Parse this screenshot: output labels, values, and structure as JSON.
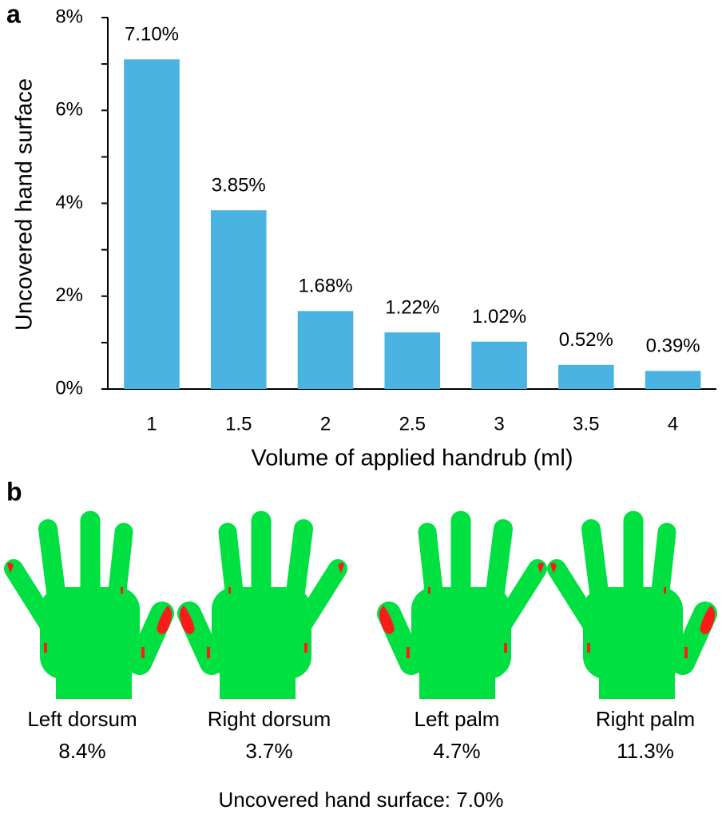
{
  "chart_data": {
    "type": "bar",
    "panel": "a",
    "categories": [
      "1",
      "1.5",
      "2",
      "2.5",
      "3",
      "3.5",
      "4"
    ],
    "values": [
      7.1,
      3.85,
      1.68,
      1.22,
      1.02,
      0.52,
      0.39
    ],
    "value_labels": [
      "7.10%",
      "3.85%",
      "1.68%",
      "1.22%",
      "1.02%",
      "0.52%",
      "0.39%"
    ],
    "color": "#4ab3e2",
    "ylim": [
      0,
      8
    ],
    "yticks": [
      {
        "value": 0,
        "label": "0%"
      },
      {
        "value": 2,
        "label": "2%"
      },
      {
        "value": 4,
        "label": "4%"
      },
      {
        "value": 6,
        "label": "6%"
      },
      {
        "value": 8,
        "label": "8%"
      }
    ],
    "minor_yticks": [
      1,
      3,
      5,
      7
    ],
    "ylabel": "Uncovered hand surface",
    "xlabel": "Volume of applied handrub (ml)",
    "grid": false
  },
  "panel_b": {
    "label": "b",
    "hands": [
      {
        "name": "Left dorsum",
        "value": "8.4%"
      },
      {
        "name": "Right dorsum",
        "value": "3.7%"
      },
      {
        "name": "Left palm",
        "value": "4.7%"
      },
      {
        "name": "Right palm",
        "value": "11.3%"
      }
    ],
    "summary": "Uncovered hand surface: 7.0%"
  }
}
